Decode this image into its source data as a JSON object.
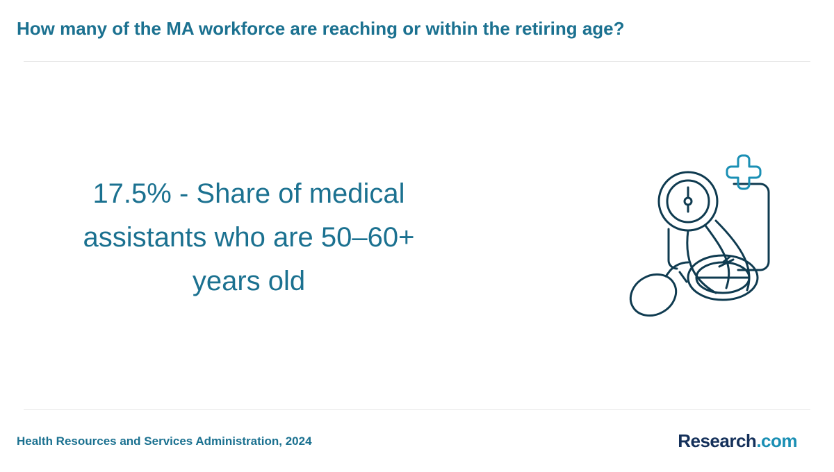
{
  "header": {
    "title": "How many of the MA workforce are reaching or within the retiring age?"
  },
  "statistic": {
    "text": "17.5% - Share of medical assistants who are 50–60+ years old"
  },
  "footer": {
    "source": "Health Resources and Services Administration, 2024",
    "logo": {
      "name": "Research",
      "suffix": ".com"
    }
  }
}
